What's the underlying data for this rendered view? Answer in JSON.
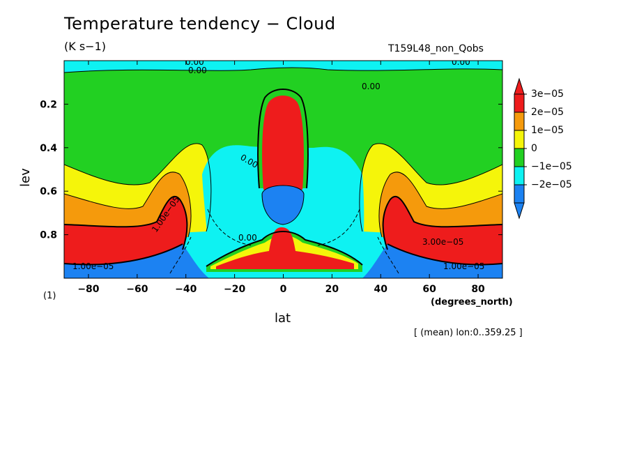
{
  "header": {
    "title": "Temperature tendency − Cloud",
    "units": "(K s−1)",
    "run_id": "T159L48_non_Qobs"
  },
  "footer": {
    "dimension_note": "(1)",
    "x_units": "(degrees_north)",
    "averaging_note": "[ (mean) lon:0..359.25 ]"
  },
  "chart_data": {
    "type": "heatmap",
    "title": "Temperature tendency − Cloud",
    "xlabel": "lat",
    "ylabel": "lev",
    "xlim": [
      -90,
      90
    ],
    "ylim": [
      1.0,
      0.0
    ],
    "x_ticks": [
      -80,
      -60,
      -40,
      -20,
      0,
      20,
      40,
      60,
      80
    ],
    "x_tick_labels": [
      "−80",
      "−60",
      "−40",
      "−20",
      "0",
      "20",
      "40",
      "60",
      "80"
    ],
    "y_ticks": [
      0.2,
      0.4,
      0.6,
      0.8
    ],
    "y_tick_labels": [
      "0.2",
      "0.4",
      "0.6",
      "0.8"
    ],
    "colorbar": {
      "levels": [
        3e-05,
        2e-05,
        1e-05,
        0,
        -1e-05,
        -2e-05
      ],
      "labels": [
        "3e−05",
        "2e−05",
        "1e−05",
        "0",
        "−1e−05",
        "−2e−05"
      ],
      "colors": [
        "#ee1c1c",
        "#f59a0c",
        "#f5f50a",
        "#22d022",
        "#0ef2f2",
        "#1c82f2"
      ]
    },
    "contour_labels": [
      "0.00",
      "0.00",
      "0.00",
      "0.00",
      "0.00",
      "0.00",
      "1.00e−05",
      "3.00e−05",
      "1.00e−05",
      "1.00e−05"
    ]
  }
}
